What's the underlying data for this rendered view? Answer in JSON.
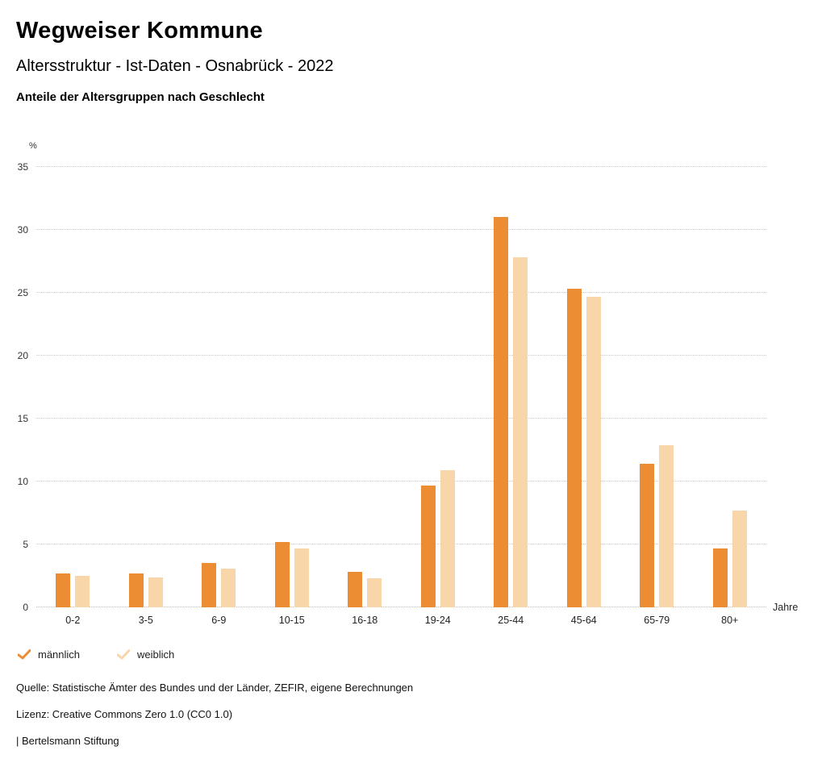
{
  "header": {
    "title": "Wegweiser Kommune",
    "subtitle": "Altersstruktur - Ist-Daten - Osnabrück - 2022",
    "chart_heading": "Anteile der Altersgruppen nach Geschlecht"
  },
  "chart_data": {
    "type": "bar",
    "title": "Anteile der Altersgruppen nach Geschlecht",
    "categories": [
      "0-2",
      "3-5",
      "6-9",
      "10-15",
      "16-18",
      "19-24",
      "25-44",
      "45-64",
      "65-79",
      "80+"
    ],
    "series": [
      {
        "name": "männlich",
        "color": "#ec8c33",
        "values": [
          2.7,
          2.7,
          3.5,
          5.2,
          2.8,
          9.7,
          31.0,
          25.3,
          11.4,
          4.7
        ]
      },
      {
        "name": "weiblich",
        "color": "#f8d6a9",
        "values": [
          2.5,
          2.4,
          3.1,
          4.7,
          2.3,
          10.9,
          27.8,
          24.7,
          12.9,
          7.7
        ]
      }
    ],
    "ylabel": "%",
    "xlabel": "Jahre",
    "ylim": [
      0,
      35
    ],
    "yticks": [
      0,
      5,
      10,
      15,
      20,
      25,
      30,
      35
    ],
    "grid": true,
    "grid_style": "dotted",
    "legend_position": "bottom-left"
  },
  "footer": {
    "source": "Quelle: Statistische Ämter des Bundes und der Länder, ZEFIR, eigene Berechnungen",
    "license": "Lizenz: Creative Commons Zero 1.0 (CC0 1.0)",
    "attribution": "| Bertelsmann Stiftung"
  }
}
